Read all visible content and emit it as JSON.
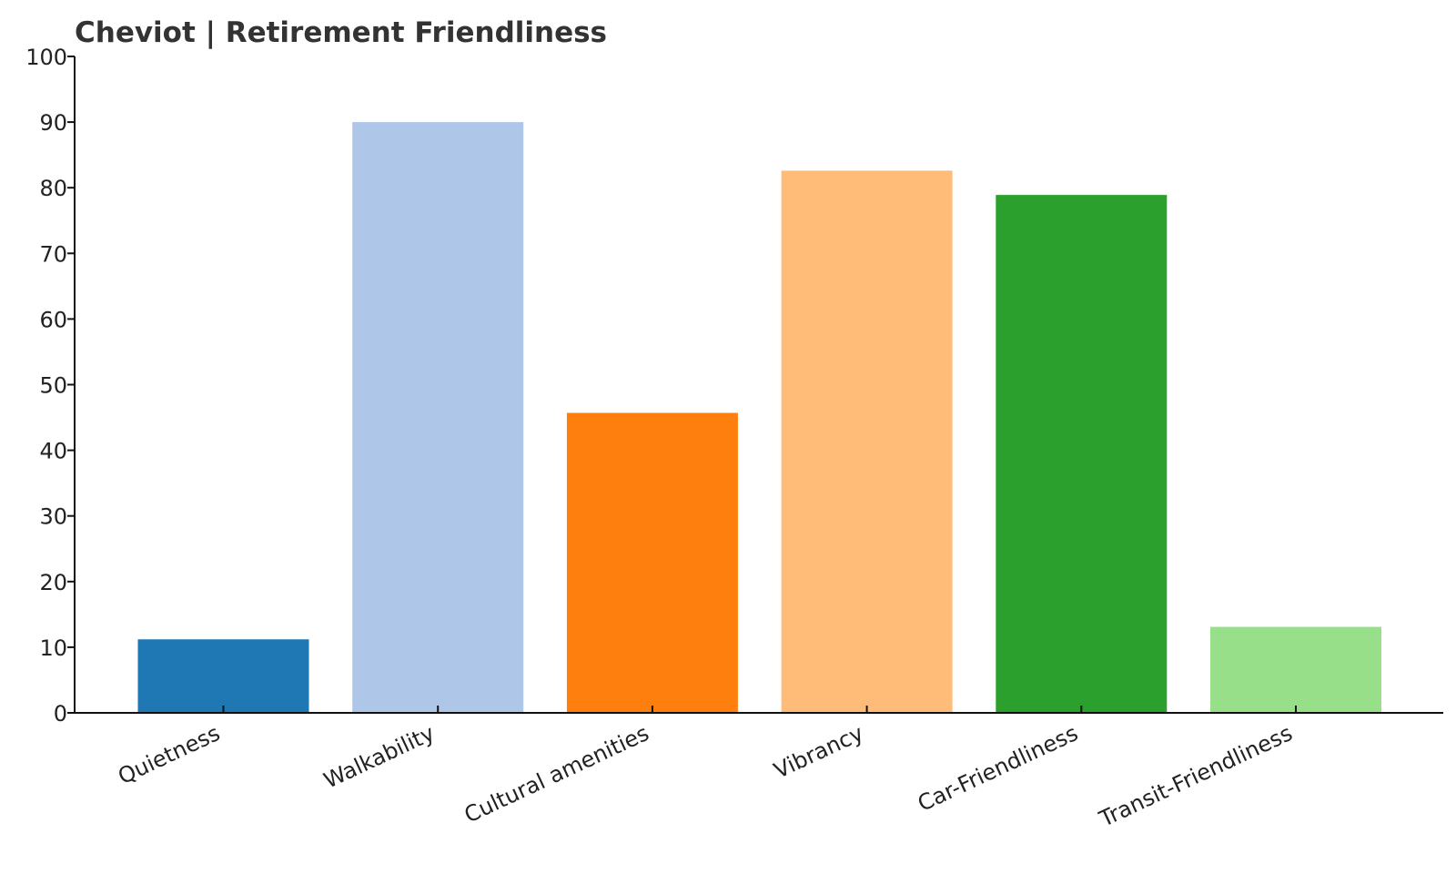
{
  "chart_data": {
    "type": "bar",
    "title": "Cheviot | Retirement Friendliness",
    "xlabel": "",
    "ylabel": "",
    "categories": [
      "Quietness",
      "Walkability",
      "Cultural amenities",
      "Vibrancy",
      "Car-Friendliness",
      "Transit-Friendliness"
    ],
    "values": [
      11.2,
      90.0,
      45.7,
      82.6,
      78.9,
      13.1
    ],
    "colors": [
      "#1f77b4",
      "#aec7e8",
      "#ff7f0e",
      "#ffbb78",
      "#2ca02c",
      "#98df8a"
    ],
    "ylim": [
      0,
      100
    ],
    "yticks": [
      0,
      10,
      20,
      30,
      40,
      50,
      60,
      70,
      80,
      90,
      100
    ],
    "grid": false,
    "legend": "none"
  }
}
